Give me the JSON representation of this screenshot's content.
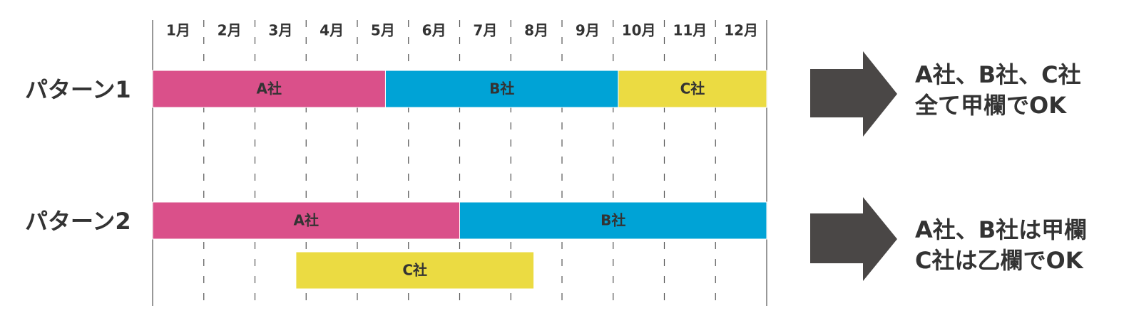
{
  "months": [
    "1月",
    "2月",
    "3月",
    "4月",
    "5月",
    "6月",
    "7月",
    "8月",
    "9月",
    "10月",
    "11月",
    "12月"
  ],
  "patterns": [
    {
      "label": "パターン1",
      "rows": [
        [
          {
            "label": "A社",
            "start": 0,
            "end": 4.55,
            "color": "#da508a"
          },
          {
            "label": "B社",
            "start": 4.55,
            "end": 9.1,
            "color": "#00a3d6"
          },
          {
            "label": "C社",
            "start": 9.1,
            "end": 12,
            "color": "#ebdb42"
          }
        ]
      ],
      "result": [
        "A社、B社、C社",
        "全て甲欄でOK"
      ]
    },
    {
      "label": "パターン2",
      "rows": [
        [
          {
            "label": "A社",
            "start": 0,
            "end": 6,
            "color": "#da508a"
          },
          {
            "label": "B社",
            "start": 6,
            "end": 12,
            "color": "#00a3d6"
          }
        ],
        [
          {
            "label": "C社",
            "start": 2.8,
            "end": 7.45,
            "color": "#ebdb42"
          }
        ]
      ],
      "result": [
        "A社、B社は甲欄",
        "C社は乙欄でOK"
      ]
    }
  ]
}
